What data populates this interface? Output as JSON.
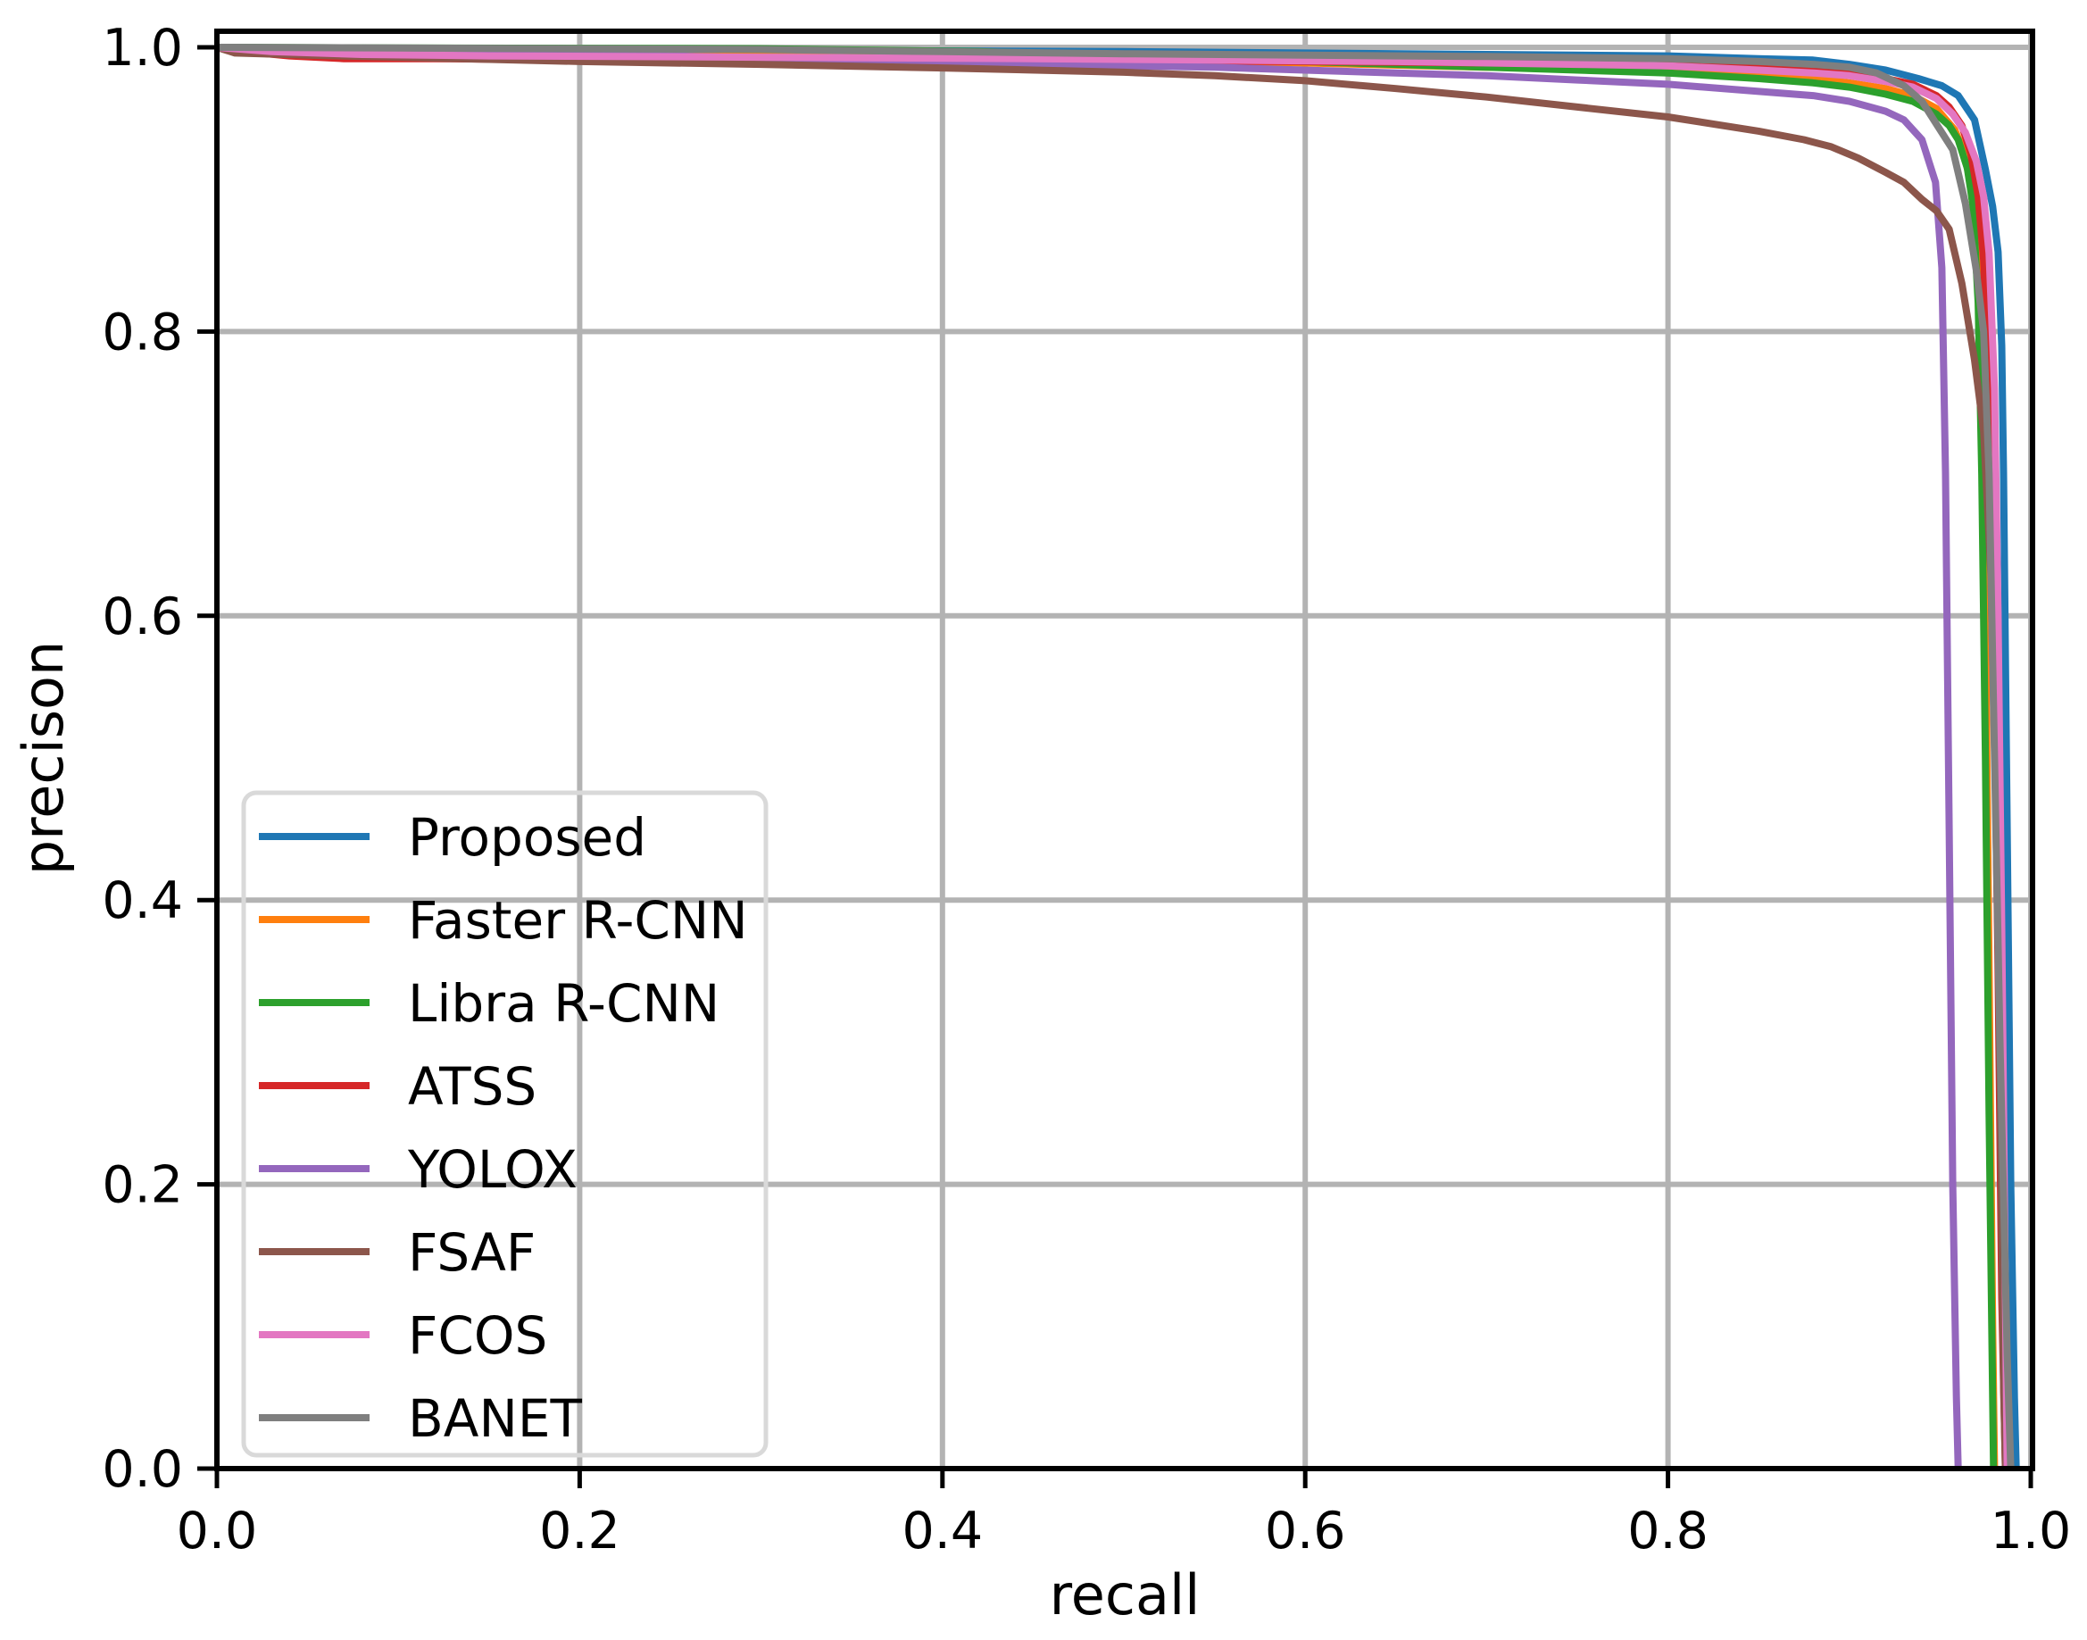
{
  "chart_data": {
    "type": "line",
    "title": "",
    "xlabel": "recall",
    "ylabel": "precison",
    "xlim": [
      0.0,
      1.0
    ],
    "ylim": [
      0.0,
      1.01
    ],
    "grid": true,
    "grid_color": "#b3b3b3",
    "spine_color": "#000000",
    "legend_position": "lower left",
    "legend_border_color": "#d9d9d9",
    "x_ticks": [
      {
        "value": 0.0,
        "label": "0.0"
      },
      {
        "value": 0.2,
        "label": "0.2"
      },
      {
        "value": 0.4,
        "label": "0.4"
      },
      {
        "value": 0.6,
        "label": "0.6"
      },
      {
        "value": 0.8,
        "label": "0.8"
      },
      {
        "value": 1.0,
        "label": "1.0"
      }
    ],
    "y_ticks": [
      {
        "value": 0.0,
        "label": "0.0"
      },
      {
        "value": 0.2,
        "label": "0.2"
      },
      {
        "value": 0.4,
        "label": "0.4"
      },
      {
        "value": 0.6,
        "label": "0.6"
      },
      {
        "value": 0.8,
        "label": "0.8"
      },
      {
        "value": 1.0,
        "label": "1.0"
      }
    ],
    "series": [
      {
        "name": "Proposed",
        "color": "#1f77b4",
        "points": [
          [
            0,
            1
          ],
          [
            0.1,
            0.999
          ],
          [
            0.3,
            0.998
          ],
          [
            0.5,
            0.997
          ],
          [
            0.6,
            0.996
          ],
          [
            0.7,
            0.995
          ],
          [
            0.8,
            0.994
          ],
          [
            0.85,
            0.992
          ],
          [
            0.88,
            0.991
          ],
          [
            0.9,
            0.988
          ],
          [
            0.92,
            0.984
          ],
          [
            0.938,
            0.978
          ],
          [
            0.951,
            0.973
          ],
          [
            0.96,
            0.966
          ],
          [
            0.969,
            0.949
          ],
          [
            0.975,
            0.914
          ],
          [
            0.979,
            0.888
          ],
          [
            0.982,
            0.856
          ],
          [
            0.984,
            0.79
          ],
          [
            0.985,
            0.7
          ],
          [
            0.987,
            0.45
          ],
          [
            0.989,
            0.2
          ],
          [
            0.991,
            0.05
          ],
          [
            0.992,
            0
          ]
        ]
      },
      {
        "name": "Faster R-CNN",
        "color": "#ff7f0e",
        "points": [
          [
            0,
            1
          ],
          [
            0.05,
            0.998
          ],
          [
            0.2,
            0.996
          ],
          [
            0.35,
            0.994
          ],
          [
            0.5,
            0.991
          ],
          [
            0.6,
            0.989
          ],
          [
            0.7,
            0.986
          ],
          [
            0.8,
            0.984
          ],
          [
            0.85,
            0.98
          ],
          [
            0.88,
            0.978
          ],
          [
            0.9,
            0.975
          ],
          [
            0.92,
            0.971
          ],
          [
            0.935,
            0.966
          ],
          [
            0.948,
            0.957
          ],
          [
            0.958,
            0.942
          ],
          [
            0.962,
            0.93
          ],
          [
            0.966,
            0.91
          ],
          [
            0.97,
            0.87
          ],
          [
            0.972,
            0.78
          ],
          [
            0.975,
            0.6
          ],
          [
            0.977,
            0.35
          ],
          [
            0.979,
            0.1
          ],
          [
            0.98,
            0
          ]
        ]
      },
      {
        "name": "Libra R-CNN",
        "color": "#2ca02c",
        "points": [
          [
            0,
            1
          ],
          [
            0.1,
            0.9995
          ],
          [
            0.3,
            0.999
          ],
          [
            0.42,
            0.997
          ],
          [
            0.5,
            0.994
          ],
          [
            0.55,
            0.992
          ],
          [
            0.6,
            0.99
          ],
          [
            0.65,
            0.988
          ],
          [
            0.7,
            0.986
          ],
          [
            0.75,
            0.984
          ],
          [
            0.8,
            0.982
          ],
          [
            0.85,
            0.978
          ],
          [
            0.88,
            0.975
          ],
          [
            0.9,
            0.972
          ],
          [
            0.92,
            0.967
          ],
          [
            0.935,
            0.962
          ],
          [
            0.948,
            0.953
          ],
          [
            0.955,
            0.945
          ],
          [
            0.96,
            0.935
          ],
          [
            0.965,
            0.915
          ],
          [
            0.968,
            0.89
          ],
          [
            0.971,
            0.82
          ],
          [
            0.973,
            0.7
          ],
          [
            0.975,
            0.5
          ],
          [
            0.977,
            0.25
          ],
          [
            0.979,
            0.05
          ],
          [
            0.9795,
            0
          ]
        ]
      },
      {
        "name": "ATSS",
        "color": "#d62728",
        "points": [
          [
            0,
            1
          ],
          [
            0.015,
            0.997
          ],
          [
            0.04,
            0.994
          ],
          [
            0.07,
            0.992
          ],
          [
            0.12,
            0.992
          ],
          [
            0.2,
            0.991
          ],
          [
            0.4,
            0.991
          ],
          [
            0.6,
            0.99
          ],
          [
            0.7,
            0.989
          ],
          [
            0.8,
            0.988
          ],
          [
            0.85,
            0.986
          ],
          [
            0.88,
            0.984
          ],
          [
            0.9,
            0.982
          ],
          [
            0.92,
            0.978
          ],
          [
            0.935,
            0.974
          ],
          [
            0.948,
            0.966
          ],
          [
            0.955,
            0.958
          ],
          [
            0.962,
            0.945
          ],
          [
            0.967,
            0.925
          ],
          [
            0.971,
            0.895
          ],
          [
            0.974,
            0.85
          ],
          [
            0.976,
            0.78
          ],
          [
            0.979,
            0.62
          ],
          [
            0.982,
            0.35
          ],
          [
            0.984,
            0.12
          ],
          [
            0.986,
            0
          ]
        ]
      },
      {
        "name": "YOLOX",
        "color": "#9467bd",
        "points": [
          [
            0,
            1
          ],
          [
            0.05,
            0.998
          ],
          [
            0.15,
            0.996
          ],
          [
            0.25,
            0.994
          ],
          [
            0.35,
            0.991
          ],
          [
            0.45,
            0.988
          ],
          [
            0.55,
            0.986
          ],
          [
            0.65,
            0.982
          ],
          [
            0.7,
            0.98
          ],
          [
            0.75,
            0.977
          ],
          [
            0.8,
            0.974
          ],
          [
            0.85,
            0.969
          ],
          [
            0.88,
            0.966
          ],
          [
            0.9,
            0.962
          ],
          [
            0.92,
            0.955
          ],
          [
            0.93,
            0.949
          ],
          [
            0.94,
            0.935
          ],
          [
            0.9475,
            0.905
          ],
          [
            0.951,
            0.845
          ],
          [
            0.953,
            0.7
          ],
          [
            0.955,
            0.45
          ],
          [
            0.957,
            0.2
          ],
          [
            0.959,
            0.05
          ],
          [
            0.96,
            0
          ]
        ]
      },
      {
        "name": "FSAF",
        "color": "#8c564b",
        "points": [
          [
            0,
            1
          ],
          [
            0.01,
            0.996
          ],
          [
            0.05,
            0.9945
          ],
          [
            0.1,
            0.993
          ],
          [
            0.15,
            0.9915
          ],
          [
            0.2,
            0.99
          ],
          [
            0.3,
            0.988
          ],
          [
            0.4,
            0.9855
          ],
          [
            0.5,
            0.9825
          ],
          [
            0.55,
            0.98
          ],
          [
            0.6,
            0.9765
          ],
          [
            0.65,
            0.971
          ],
          [
            0.7,
            0.965
          ],
          [
            0.75,
            0.958
          ],
          [
            0.8,
            0.951
          ],
          [
            0.85,
            0.941
          ],
          [
            0.875,
            0.935
          ],
          [
            0.89,
            0.93
          ],
          [
            0.905,
            0.922
          ],
          [
            0.92,
            0.912
          ],
          [
            0.93,
            0.905
          ],
          [
            0.94,
            0.893
          ],
          [
            0.948,
            0.885
          ],
          [
            0.955,
            0.872
          ],
          [
            0.962,
            0.834
          ],
          [
            0.969,
            0.78
          ],
          [
            0.974,
            0.73
          ],
          [
            0.978,
            0.63
          ],
          [
            0.981,
            0.45
          ],
          [
            0.983,
            0.28
          ],
          [
            0.985,
            0.06
          ],
          [
            0.986,
            0
          ]
        ]
      },
      {
        "name": "FCOS",
        "color": "#e377c2",
        "points": [
          [
            0,
            1
          ],
          [
            0.03,
            0.997
          ],
          [
            0.08,
            0.995
          ],
          [
            0.15,
            0.994
          ],
          [
            0.3,
            0.993
          ],
          [
            0.45,
            0.992
          ],
          [
            0.55,
            0.991
          ],
          [
            0.65,
            0.99
          ],
          [
            0.75,
            0.988
          ],
          [
            0.8,
            0.987
          ],
          [
            0.85,
            0.984
          ],
          [
            0.88,
            0.982
          ],
          [
            0.9,
            0.98
          ],
          [
            0.92,
            0.976
          ],
          [
            0.935,
            0.972
          ],
          [
            0.948,
            0.964
          ],
          [
            0.957,
            0.953
          ],
          [
            0.964,
            0.94
          ],
          [
            0.97,
            0.92
          ],
          [
            0.974,
            0.895
          ],
          [
            0.977,
            0.855
          ],
          [
            0.98,
            0.76
          ],
          [
            0.982,
            0.6
          ],
          [
            0.984,
            0.38
          ],
          [
            0.986,
            0.12
          ],
          [
            0.987,
            0
          ]
        ]
      },
      {
        "name": "BANET",
        "color": "#7f7f7f",
        "points": [
          [
            0,
            1
          ],
          [
            0.1,
            0.9995
          ],
          [
            0.3,
            0.9985
          ],
          [
            0.4,
            0.997
          ],
          [
            0.5,
            0.9955
          ],
          [
            0.6,
            0.9945
          ],
          [
            0.7,
            0.9935
          ],
          [
            0.8,
            0.992
          ],
          [
            0.85,
            0.99
          ],
          [
            0.88,
            0.988
          ],
          [
            0.9,
            0.986
          ],
          [
            0.915,
            0.982
          ],
          [
            0.93,
            0.973
          ],
          [
            0.94,
            0.962
          ],
          [
            0.948,
            0.946
          ],
          [
            0.957,
            0.928
          ],
          [
            0.964,
            0.89
          ],
          [
            0.97,
            0.843
          ],
          [
            0.974,
            0.8
          ],
          [
            0.977,
            0.7
          ],
          [
            0.98,
            0.5
          ],
          [
            0.983,
            0.3
          ],
          [
            0.987,
            0.08
          ],
          [
            0.989,
            0
          ]
        ]
      }
    ]
  }
}
